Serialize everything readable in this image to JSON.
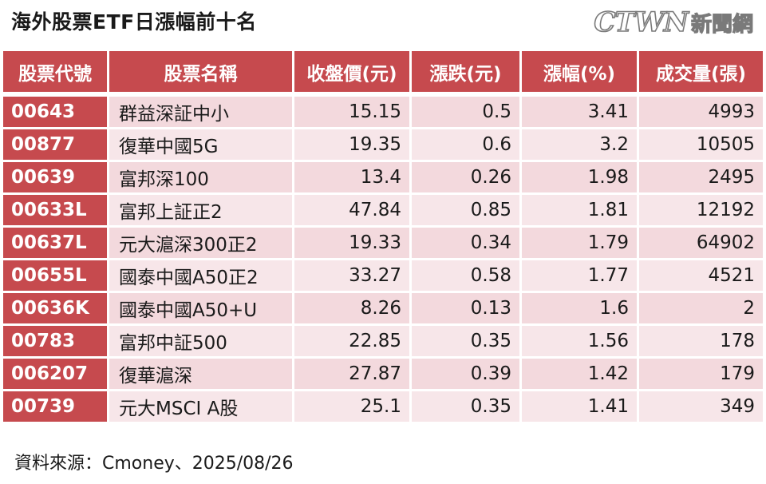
{
  "title": "海外股票ETF日漲幅前十名",
  "logo": {
    "mark": "CTWN",
    "text": "新聞網"
  },
  "table": {
    "headers": [
      "股票代號",
      "股票名稱",
      "收盤價(元)",
      "漲跌(元)",
      "漲幅(%)",
      "成交量(張)"
    ],
    "rows": [
      [
        "00643",
        "群益深証中小",
        "15.15",
        "0.5",
        "3.41",
        "4993"
      ],
      [
        "00877",
        "復華中國5G",
        "19.35",
        "0.6",
        "3.2",
        "10505"
      ],
      [
        "00639",
        "富邦深100",
        "13.4",
        "0.26",
        "1.98",
        "2495"
      ],
      [
        "00633L",
        "富邦上証正2",
        "47.84",
        "0.85",
        "1.81",
        "12192"
      ],
      [
        "00637L",
        "元大滬深300正2",
        "19.33",
        "0.34",
        "1.79",
        "64902"
      ],
      [
        "00655L",
        "國泰中國A50正2",
        "33.27",
        "0.58",
        "1.77",
        "4521"
      ],
      [
        "00636K",
        "國泰中國A50+U",
        "8.26",
        "0.13",
        "1.6",
        "2"
      ],
      [
        "00783",
        "富邦中証500",
        "22.85",
        "0.35",
        "1.56",
        "178"
      ],
      [
        "006207",
        "復華滬深",
        "27.87",
        "0.39",
        "1.42",
        "179"
      ],
      [
        "00739",
        "元大MSCI A股",
        "25.1",
        "0.35",
        "1.41",
        "349"
      ]
    ]
  },
  "source": "資料來源：Cmoney、2025/08/26",
  "colors": {
    "header_bg": "#c64a4e",
    "row_odd": "#f3d9dd",
    "row_even": "#f7e6e9"
  }
}
